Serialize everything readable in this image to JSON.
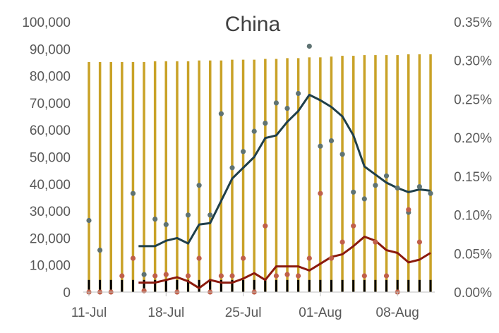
{
  "chart_data": {
    "type": "bar+line+scatter",
    "title": "China",
    "xlabel": "",
    "ylabel_left": "",
    "ylabel_right": "",
    "left_axis": {
      "ylim": [
        0,
        100000
      ],
      "ticks": [
        "0",
        "10,000",
        "20,000",
        "30,000",
        "40,000",
        "50,000",
        "60,000",
        "70,000",
        "80,000",
        "90,000",
        "100,000"
      ]
    },
    "right_axis": {
      "ylim": [
        0,
        0.35
      ],
      "ticks": [
        "0.00%",
        "0.05%",
        "0.10%",
        "0.15%",
        "0.20%",
        "0.25%",
        "0.30%",
        "0.35%"
      ]
    },
    "x_ticks": [
      {
        "label": "11-Jul",
        "day": 0
      },
      {
        "label": "18-Jul",
        "day": 7
      },
      {
        "label": "25-Jul",
        "day": 14
      },
      {
        "label": "01-Aug",
        "day": 21
      },
      {
        "label": "08-Aug",
        "day": 28
      }
    ],
    "x_range_days": [
      0,
      31
    ],
    "grid": false,
    "colors": {
      "gold_bars": "#C9A227",
      "black_bars": "#000000",
      "dark_line": "#1F3F4A",
      "red_line": "#8B1A0E",
      "gray_dots": "#5F7373",
      "orange_dots": "#C0604A"
    },
    "series": [
      {
        "kind": "bar",
        "axis": "right",
        "color_key": "gold_bars",
        "values": [
          0.298,
          0.298,
          0.298,
          0.298,
          0.298,
          0.298,
          0.299,
          0.299,
          0.299,
          0.299,
          0.3,
          0.3,
          0.3,
          0.301,
          0.301,
          0.301,
          0.302,
          0.302,
          0.303,
          0.303,
          0.304,
          0.304,
          0.305,
          0.306,
          0.306,
          0.307,
          0.307,
          0.307,
          0.307,
          0.308,
          0.308,
          0.308
        ]
      },
      {
        "kind": "bar",
        "axis": "left",
        "color_key": "black_bars",
        "values": [
          4500,
          4500,
          4500,
          4500,
          4500,
          4500,
          4500,
          4500,
          4500,
          4500,
          4500,
          4500,
          4500,
          4500,
          4500,
          4500,
          4500,
          4500,
          4500,
          4500,
          4500,
          4500,
          4500,
          4500,
          4500,
          4500,
          4500,
          4500,
          4500,
          4500,
          4500,
          4500
        ]
      },
      {
        "kind": "scatter",
        "axis": "left",
        "color_key": "gray_dots",
        "points": [
          [
            0,
            26500
          ],
          [
            1,
            15500
          ],
          [
            4,
            36500
          ],
          [
            5,
            6500
          ],
          [
            6,
            27000
          ],
          [
            7,
            25000
          ],
          [
            9,
            28500
          ],
          [
            10,
            39500
          ],
          [
            11,
            28500
          ],
          [
            12,
            66000
          ],
          [
            13,
            46000
          ],
          [
            14,
            52000
          ],
          [
            15,
            59500
          ],
          [
            16,
            62500
          ],
          [
            17,
            70000
          ],
          [
            18,
            68000
          ],
          [
            19,
            73500
          ],
          [
            20,
            91000
          ],
          [
            21,
            54000
          ],
          [
            22,
            56000
          ],
          [
            23,
            51000
          ],
          [
            24,
            37000
          ],
          [
            25,
            34500
          ],
          [
            26,
            39500
          ],
          [
            27,
            43000
          ],
          [
            28,
            38500
          ],
          [
            29,
            29500
          ],
          [
            30,
            39000
          ],
          [
            31,
            36500
          ]
        ]
      },
      {
        "kind": "scatter",
        "axis": "left",
        "color_key": "orange_dots",
        "points": [
          [
            0,
            0
          ],
          [
            1,
            0
          ],
          [
            2,
            0
          ],
          [
            3,
            6000
          ],
          [
            4,
            12500
          ],
          [
            5,
            500
          ],
          [
            6,
            6000
          ],
          [
            7,
            6500
          ],
          [
            8,
            0
          ],
          [
            9,
            6000
          ],
          [
            10,
            12500
          ],
          [
            11,
            0
          ],
          [
            12,
            6000
          ],
          [
            13,
            6000
          ],
          [
            14,
            12500
          ],
          [
            15,
            0
          ],
          [
            16,
            24500
          ],
          [
            17,
            6000
          ],
          [
            18,
            6500
          ],
          [
            19,
            6000
          ],
          [
            20,
            12500
          ],
          [
            21,
            36500
          ],
          [
            22,
            12500
          ],
          [
            23,
            18500
          ],
          [
            24,
            24500
          ],
          [
            25,
            6000
          ],
          [
            26,
            18500
          ],
          [
            27,
            6000
          ],
          [
            28,
            0
          ],
          [
            29,
            30500
          ],
          [
            30,
            18500
          ]
        ]
      },
      {
        "kind": "line",
        "axis": "left",
        "color_key": "dark_line",
        "points": [
          [
            4.5,
            17000
          ],
          [
            6,
            17000
          ],
          [
            7,
            19000
          ],
          [
            8,
            20000
          ],
          [
            9,
            18000
          ],
          [
            10,
            25000
          ],
          [
            11,
            25500
          ],
          [
            13,
            42000
          ],
          [
            15,
            50000
          ],
          [
            16,
            57000
          ],
          [
            17,
            58000
          ],
          [
            18,
            63000
          ],
          [
            19,
            67000
          ],
          [
            20,
            73000
          ],
          [
            21,
            71000
          ],
          [
            22,
            68500
          ],
          [
            23,
            65000
          ],
          [
            24,
            58000
          ],
          [
            25,
            46500
          ],
          [
            26,
            43500
          ],
          [
            27,
            40500
          ],
          [
            28,
            38500
          ],
          [
            29,
            37000
          ],
          [
            30,
            38000
          ],
          [
            31,
            37500
          ]
        ]
      },
      {
        "kind": "line",
        "axis": "left",
        "color_key": "red_line",
        "points": [
          [
            4.5,
            3500
          ],
          [
            6,
            3500
          ],
          [
            7,
            4500
          ],
          [
            8,
            5500
          ],
          [
            9,
            4000
          ],
          [
            10,
            1500
          ],
          [
            11,
            4500
          ],
          [
            12,
            3500
          ],
          [
            13,
            3500
          ],
          [
            14,
            5000
          ],
          [
            15,
            7000
          ],
          [
            16,
            4500
          ],
          [
            17,
            9500
          ],
          [
            18,
            9500
          ],
          [
            19,
            9500
          ],
          [
            20,
            8000
          ],
          [
            21,
            10500
          ],
          [
            22,
            13000
          ],
          [
            23,
            14000
          ],
          [
            24,
            17000
          ],
          [
            25,
            20500
          ],
          [
            26,
            19000
          ],
          [
            27,
            15500
          ],
          [
            28,
            14500
          ],
          [
            29,
            11000
          ],
          [
            30,
            12000
          ],
          [
            31,
            14500
          ]
        ]
      }
    ]
  }
}
